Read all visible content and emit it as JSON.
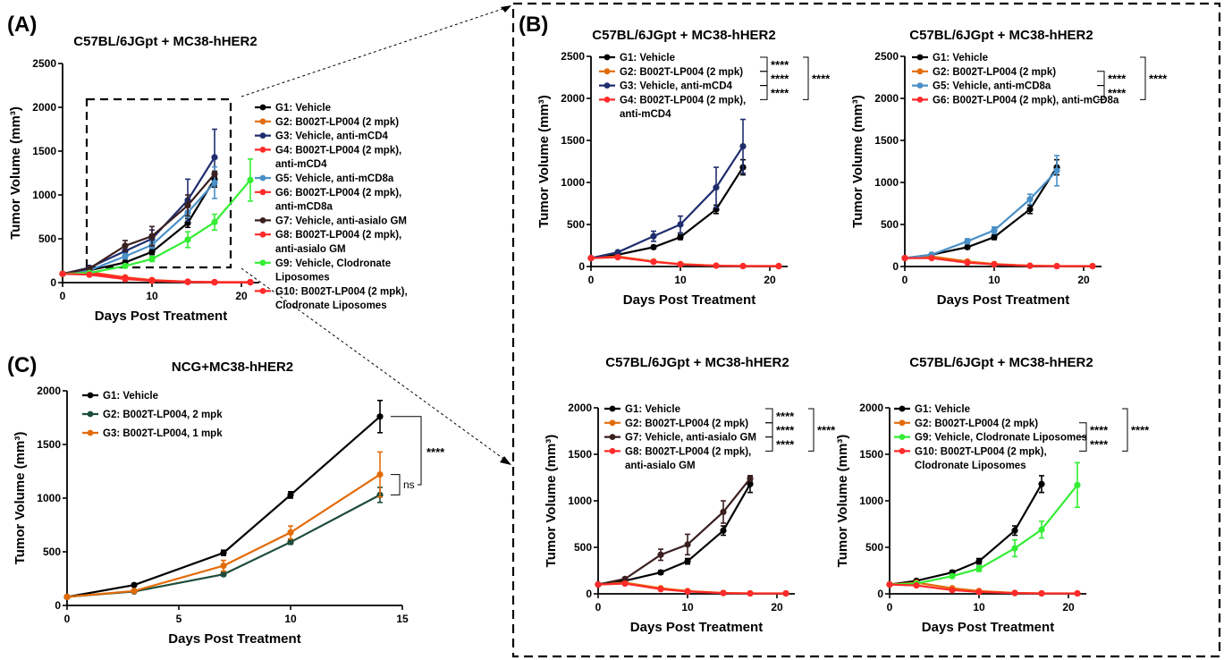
{
  "panel_labels": {
    "A": "(A)",
    "B": "(B)",
    "C": "(C)"
  },
  "chart_data": [
    {
      "id": "A",
      "type": "line",
      "title": "C57BL/6JGpt + MC38-hHER2",
      "xlabel": "Days Post Treatment",
      "ylabel": "Tumor Volume (mm³)",
      "xlim": [
        0,
        22
      ],
      "ylim": [
        0,
        2500
      ],
      "xticks": [
        0,
        10,
        20
      ],
      "yticks": [
        0,
        500,
        1000,
        1500,
        2000,
        2500
      ],
      "grid": false,
      "legend_position": "right",
      "series": [
        {
          "name": "G1: Vehicle",
          "color": "#000000",
          "x": [
            0,
            3,
            7,
            10,
            14,
            17
          ],
          "y": [
            100,
            140,
            230,
            350,
            680,
            1180
          ],
          "err": [
            5,
            10,
            20,
            30,
            50,
            90
          ]
        },
        {
          "name": "G2: B002T-LP004 (2 mpk)",
          "color": "#E36C0A",
          "x": [
            0,
            3,
            7,
            10,
            14,
            17,
            21
          ],
          "y": [
            100,
            120,
            60,
            30,
            10,
            5,
            5
          ],
          "err": [
            5,
            10,
            10,
            5,
            3,
            2,
            2
          ]
        },
        {
          "name": "G3: Vehicle, anti-mCD4",
          "color": "#1F2D6E",
          "x": [
            0,
            3,
            7,
            10,
            14,
            17
          ],
          "y": [
            100,
            170,
            360,
            500,
            940,
            1430
          ],
          "err": [
            5,
            15,
            60,
            100,
            240,
            320
          ]
        },
        {
          "name": "G4: B002T-LP004 (2 mpk), anti-mCD4",
          "color": "#FF2A2A",
          "x": [
            0,
            3,
            7,
            10,
            14,
            17,
            21
          ],
          "y": [
            100,
            110,
            55,
            25,
            10,
            5,
            5
          ],
          "err": [
            5,
            8,
            8,
            5,
            3,
            2,
            2
          ]
        },
        {
          "name": "G5: Vehicle, anti-mCD8a",
          "color": "#4A90C8",
          "x": [
            0,
            3,
            7,
            10,
            14,
            17
          ],
          "y": [
            100,
            140,
            300,
            430,
            800,
            1140
          ],
          "err": [
            5,
            10,
            30,
            40,
            60,
            180
          ]
        },
        {
          "name": "G6: B002T-LP004 (2 mpk), anti-mCD8a",
          "color": "#FF2A2A",
          "x": [
            0,
            3,
            7,
            10,
            14,
            17,
            21
          ],
          "y": [
            100,
            100,
            45,
            25,
            8,
            4,
            4
          ],
          "err": [
            5,
            8,
            8,
            5,
            3,
            2,
            2
          ]
        },
        {
          "name": "G7: Vehicle, anti-asialo GM",
          "color": "#3A1F1F",
          "x": [
            0,
            3,
            7,
            10,
            14,
            17
          ],
          "y": [
            100,
            160,
            420,
            530,
            880,
            1240
          ],
          "err": [
            5,
            15,
            60,
            110,
            120,
            30
          ]
        },
        {
          "name": "G8: B002T-LP004 (2 mpk), anti-asialo GM",
          "color": "#FF2A2A",
          "x": [
            0,
            3,
            7,
            10,
            14,
            17,
            21
          ],
          "y": [
            100,
            110,
            50,
            25,
            8,
            4,
            4
          ],
          "err": [
            5,
            8,
            8,
            5,
            3,
            2,
            2
          ]
        },
        {
          "name": "G9: Vehicle, Clodronate Liposomes",
          "color": "#33EE33",
          "x": [
            0,
            3,
            7,
            10,
            14,
            17,
            21
          ],
          "y": [
            100,
            110,
            190,
            270,
            490,
            690,
            1170
          ],
          "err": [
            5,
            10,
            20,
            30,
            90,
            90,
            240
          ]
        },
        {
          "name": "G10: B002T-LP004 (2 mpk), Clodronate Liposomes",
          "color": "#FF2A2A",
          "x": [
            0,
            3,
            7,
            10,
            14,
            17,
            21
          ],
          "y": [
            100,
            90,
            40,
            20,
            8,
            4,
            4
          ],
          "err": [
            5,
            8,
            8,
            5,
            3,
            2,
            2
          ]
        }
      ]
    },
    {
      "id": "B1",
      "type": "line",
      "title": "C57BL/6JGpt + MC38-hHER2",
      "xlabel": "Days Post Treatment",
      "ylabel": "Tumor Volume (mm³)",
      "xlim": [
        0,
        22
      ],
      "ylim": [
        0,
        2500
      ],
      "xticks": [
        0,
        10,
        20
      ],
      "yticks": [
        0,
        500,
        1000,
        1500,
        2000,
        2500
      ],
      "grid": false,
      "legend_position": "top-right",
      "significance": [
        "****",
        "****",
        "****",
        "****"
      ],
      "series": [
        {
          "name": "G1: Vehicle",
          "color": "#000000",
          "x": [
            0,
            3,
            7,
            10,
            14,
            17
          ],
          "y": [
            100,
            140,
            230,
            350,
            680,
            1180
          ],
          "err": [
            5,
            10,
            20,
            30,
            50,
            90
          ]
        },
        {
          "name": "G2: B002T-LP004 (2 mpk)",
          "color": "#E36C0A",
          "x": [
            0,
            3,
            7,
            10,
            14,
            17,
            21
          ],
          "y": [
            100,
            120,
            60,
            30,
            10,
            5,
            5
          ],
          "err": [
            5,
            10,
            10,
            5,
            3,
            2,
            2
          ]
        },
        {
          "name": "G3: Vehicle, anti-mCD4",
          "color": "#1F2D6E",
          "x": [
            0,
            3,
            7,
            10,
            14,
            17
          ],
          "y": [
            100,
            170,
            360,
            500,
            940,
            1430
          ],
          "err": [
            5,
            15,
            60,
            100,
            240,
            320
          ]
        },
        {
          "name": "G4: B002T-LP004 (2 mpk), anti-mCD4",
          "color": "#FF2A2A",
          "x": [
            0,
            3,
            7,
            10,
            14,
            17,
            21
          ],
          "y": [
            100,
            110,
            55,
            25,
            10,
            5,
            5
          ],
          "err": [
            5,
            8,
            8,
            5,
            3,
            2,
            2
          ]
        }
      ]
    },
    {
      "id": "B2",
      "type": "line",
      "title": "C57BL/6JGpt + MC38-hHER2",
      "xlabel": "Days Post Treatment",
      "ylabel": "Tumor Volume (mm³)",
      "xlim": [
        0,
        22
      ],
      "ylim": [
        0,
        2500
      ],
      "xticks": [
        0,
        10,
        20
      ],
      "yticks": [
        0,
        500,
        1000,
        1500,
        2000,
        2500
      ],
      "grid": false,
      "legend_position": "top-right",
      "significance": [
        "****",
        "****",
        "****"
      ],
      "series": [
        {
          "name": "G1: Vehicle",
          "color": "#000000",
          "x": [
            0,
            3,
            7,
            10,
            14,
            17
          ],
          "y": [
            100,
            140,
            230,
            350,
            680,
            1180
          ],
          "err": [
            5,
            10,
            20,
            30,
            50,
            90
          ]
        },
        {
          "name": "G2: B002T-LP004 (2 mpk)",
          "color": "#E36C0A",
          "x": [
            0,
            3,
            7,
            10,
            14,
            17,
            21
          ],
          "y": [
            100,
            120,
            60,
            30,
            10,
            5,
            5
          ],
          "err": [
            5,
            10,
            10,
            5,
            3,
            2,
            2
          ]
        },
        {
          "name": "G5: Vehicle, anti-mCD8a",
          "color": "#4A90C8",
          "x": [
            0,
            3,
            7,
            10,
            14,
            17
          ],
          "y": [
            100,
            140,
            300,
            430,
            800,
            1140
          ],
          "err": [
            5,
            10,
            30,
            40,
            60,
            180
          ]
        },
        {
          "name": "G6: B002T-LP004 (2 mpk), anti-mCD8a",
          "color": "#FF2A2A",
          "x": [
            0,
            3,
            7,
            10,
            14,
            17,
            21
          ],
          "y": [
            100,
            100,
            45,
            25,
            8,
            4,
            4
          ],
          "err": [
            5,
            8,
            8,
            5,
            3,
            2,
            2
          ]
        }
      ]
    },
    {
      "id": "B3",
      "type": "line",
      "title": "C57BL/6JGpt + MC38-hHER2",
      "xlabel": "Days Post Treatment",
      "ylabel": "Tumor Volume (mm³)",
      "xlim": [
        0,
        22
      ],
      "ylim": [
        0,
        2000
      ],
      "xticks": [
        0,
        10,
        20
      ],
      "yticks": [
        0,
        500,
        1000,
        1500,
        2000
      ],
      "grid": false,
      "legend_position": "top-right",
      "significance": [
        "****",
        "****",
        "****",
        "****"
      ],
      "series": [
        {
          "name": "G1: Vehicle",
          "color": "#000000",
          "x": [
            0,
            3,
            7,
            10,
            14,
            17
          ],
          "y": [
            100,
            140,
            230,
            350,
            680,
            1180
          ],
          "err": [
            5,
            10,
            20,
            30,
            50,
            90
          ]
        },
        {
          "name": "G2: B002T-LP004 (2 mpk)",
          "color": "#E36C0A",
          "x": [
            0,
            3,
            7,
            10,
            14,
            17,
            21
          ],
          "y": [
            100,
            120,
            60,
            30,
            10,
            5,
            5
          ],
          "err": [
            5,
            10,
            10,
            5,
            3,
            2,
            2
          ]
        },
        {
          "name": "G7: Vehicle, anti-asialo GM",
          "color": "#3A1F1F",
          "x": [
            0,
            3,
            7,
            10,
            14,
            17
          ],
          "y": [
            100,
            160,
            420,
            530,
            880,
            1240
          ],
          "err": [
            5,
            15,
            60,
            110,
            120,
            30
          ]
        },
        {
          "name": "G8: B002T-LP004 (2 mpk), anti-asialo GM",
          "color": "#FF2A2A",
          "x": [
            0,
            3,
            7,
            10,
            14,
            17,
            21
          ],
          "y": [
            100,
            110,
            50,
            25,
            8,
            4,
            4
          ],
          "err": [
            5,
            8,
            8,
            5,
            3,
            2,
            2
          ]
        }
      ]
    },
    {
      "id": "B4",
      "type": "line",
      "title": "C57BL/6JGpt + MC38-hHER2",
      "xlabel": "Days Post Treatment",
      "ylabel": "Tumor Volume (mm³)",
      "xlim": [
        0,
        22
      ],
      "ylim": [
        0,
        2000
      ],
      "xticks": [
        0,
        10,
        20
      ],
      "yticks": [
        0,
        500,
        1000,
        1500,
        2000
      ],
      "grid": false,
      "legend_position": "top-right",
      "significance": [
        "****",
        "****",
        "****"
      ],
      "series": [
        {
          "name": "G1: Vehicle",
          "color": "#000000",
          "x": [
            0,
            3,
            7,
            10,
            14,
            17
          ],
          "y": [
            100,
            140,
            230,
            350,
            680,
            1180
          ],
          "err": [
            5,
            10,
            20,
            30,
            50,
            90
          ]
        },
        {
          "name": "G2: B002T-LP004 (2 mpk)",
          "color": "#E36C0A",
          "x": [
            0,
            3,
            7,
            10,
            14,
            17,
            21
          ],
          "y": [
            100,
            120,
            60,
            30,
            10,
            5,
            5
          ],
          "err": [
            5,
            10,
            10,
            5,
            3,
            2,
            2
          ]
        },
        {
          "name": "G9: Vehicle, Clodronate Liposomes",
          "color": "#33EE33",
          "x": [
            0,
            3,
            7,
            10,
            14,
            17,
            21
          ],
          "y": [
            100,
            110,
            190,
            270,
            490,
            690,
            1170
          ],
          "err": [
            5,
            10,
            20,
            30,
            90,
            90,
            240
          ]
        },
        {
          "name": "G10: B002T-LP004 (2 mpk), Clodronate Liposomes",
          "color": "#FF2A2A",
          "x": [
            0,
            3,
            7,
            10,
            14,
            17,
            21
          ],
          "y": [
            100,
            90,
            40,
            20,
            8,
            4,
            4
          ],
          "err": [
            5,
            8,
            8,
            5,
            3,
            2,
            2
          ]
        }
      ]
    },
    {
      "id": "C",
      "type": "line",
      "title": "NCG+MC38-hHER2",
      "xlabel": "Days Post Treatment",
      "ylabel": "Tumor Volume (mm³)",
      "xlim": [
        0,
        15
      ],
      "ylim": [
        0,
        2000
      ],
      "xticks": [
        0,
        5,
        10,
        15
      ],
      "yticks": [
        0,
        500,
        1000,
        1500,
        2000
      ],
      "grid": false,
      "legend_position": "top-left",
      "significance": [
        "****",
        "ns"
      ],
      "series": [
        {
          "name": "G1: Vehicle",
          "color": "#000000",
          "x": [
            0,
            3,
            7,
            10,
            14
          ],
          "y": [
            80,
            190,
            490,
            1030,
            1760
          ],
          "err": [
            3,
            10,
            25,
            30,
            150
          ]
        },
        {
          "name": "G2: B002T-LP004, 2 mpk",
          "color": "#1E4D3A",
          "x": [
            0,
            3,
            7,
            10,
            14
          ],
          "y": [
            80,
            130,
            290,
            590,
            1030
          ],
          "err": [
            3,
            10,
            15,
            20,
            70
          ]
        },
        {
          "name": "G3: B002T-LP004, 1 mpk",
          "color": "#E36C0A",
          "x": [
            0,
            3,
            7,
            10,
            14
          ],
          "y": [
            80,
            135,
            370,
            680,
            1220
          ],
          "err": [
            3,
            10,
            50,
            60,
            210
          ]
        }
      ]
    }
  ]
}
